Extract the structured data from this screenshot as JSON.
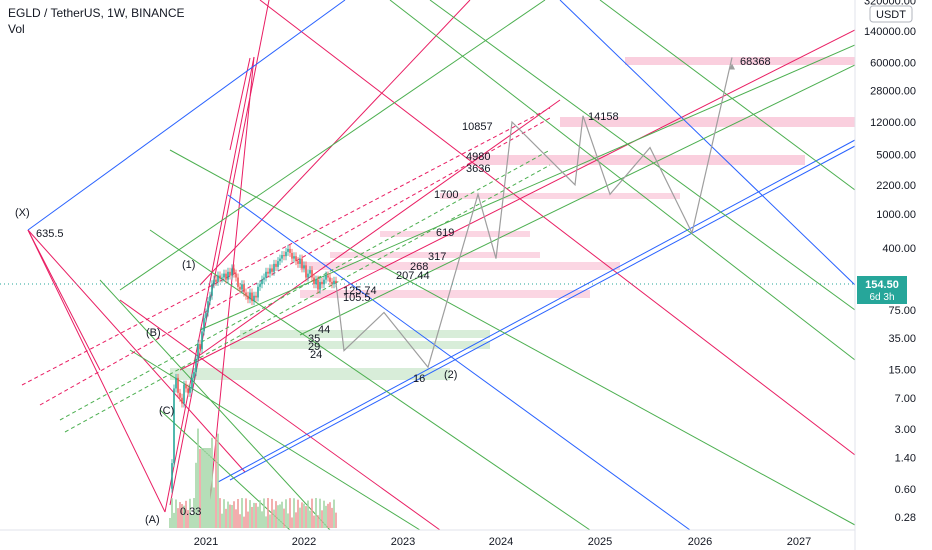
{
  "header": {
    "symbol": "EGLD / TetherUS, 1W, BINANCE",
    "volume_label": "Vol",
    "currency": "USDT"
  },
  "price_badge": {
    "price": "154.50",
    "countdown": "6d 3h",
    "color": "#26a69a"
  },
  "colors": {
    "red": "#e91e63",
    "blue": "#2962ff",
    "green": "#4caf50",
    "zone_red": "#f8bbd0",
    "zone_green": "#c8e6c9",
    "path": "#9e9e9e"
  },
  "chart_data": {
    "type": "line",
    "y_scale": "log",
    "x_ticks": [
      "2021",
      "2022",
      "2023",
      "2024",
      "2025",
      "2026",
      "2027"
    ],
    "y_ticks": [
      "320000.00",
      "140000.00",
      "60000.00",
      "28000.00",
      "12000.00",
      "5000.00",
      "2200.00",
      "1000.00",
      "400.00",
      "75.00",
      "35.00",
      "15.00",
      "7.00",
      "3.00",
      "1.40",
      "0.60",
      "0.28"
    ],
    "wave_labels": [
      "(X)",
      "(1)",
      "(B)",
      "(C)",
      "(A)",
      "(2)"
    ],
    "level_labels": [
      "635.5",
      "0.33",
      "10857",
      "14158",
      "68368",
      "4980",
      "3636",
      "1700",
      "619",
      "317",
      "268",
      "207.44",
      "125.74",
      "105.5",
      "44",
      "35",
      "29",
      "24",
      "16"
    ],
    "projection_path": [
      154.5,
      25,
      70,
      16,
      1700,
      300,
      12000,
      2200,
      14158,
      1700,
      6000,
      600,
      68368
    ]
  }
}
